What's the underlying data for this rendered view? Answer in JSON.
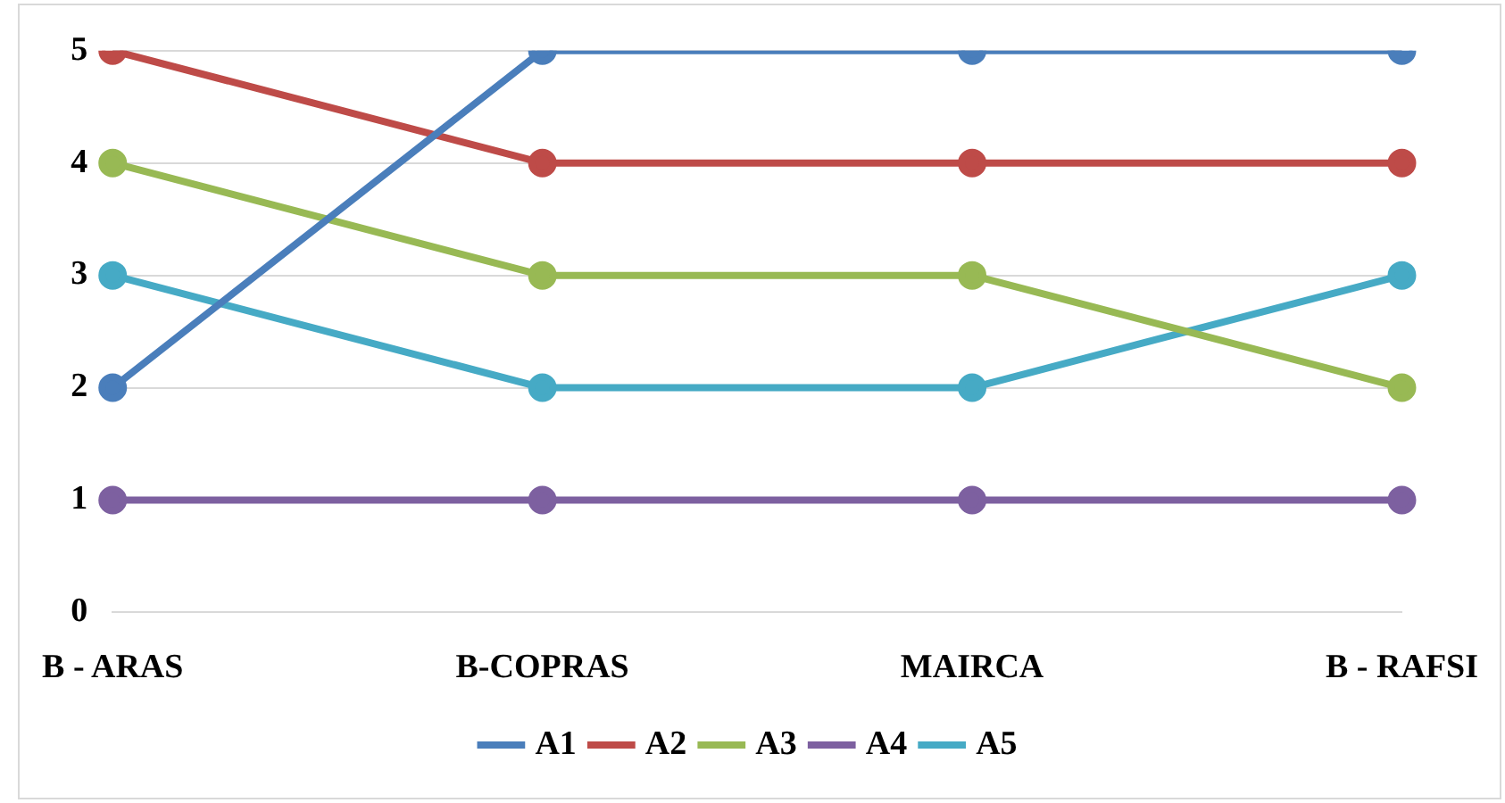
{
  "chart_data": {
    "type": "line",
    "categories": [
      "B - ARAS",
      "B-COPRAS",
      "MAIRCA",
      "B - RAFSI"
    ],
    "series": [
      {
        "name": "A1",
        "color": "#4a7ebb",
        "values": [
          2,
          5,
          5,
          5
        ]
      },
      {
        "name": "A2",
        "color": "#be4b48",
        "values": [
          5,
          4,
          4,
          4
        ]
      },
      {
        "name": "A3",
        "color": "#98b954",
        "values": [
          4,
          3,
          3,
          2
        ]
      },
      {
        "name": "A4",
        "color": "#7d60a0",
        "values": [
          1,
          1,
          1,
          1
        ]
      },
      {
        "name": "A5",
        "color": "#46aac5",
        "values": [
          3,
          2,
          2,
          3
        ]
      }
    ],
    "ylim": [
      0,
      5
    ],
    "yticks": [
      0,
      1,
      2,
      3,
      4,
      5
    ],
    "grid": "y",
    "legend": "bottom",
    "marker": "circle",
    "line_style": "solid"
  }
}
